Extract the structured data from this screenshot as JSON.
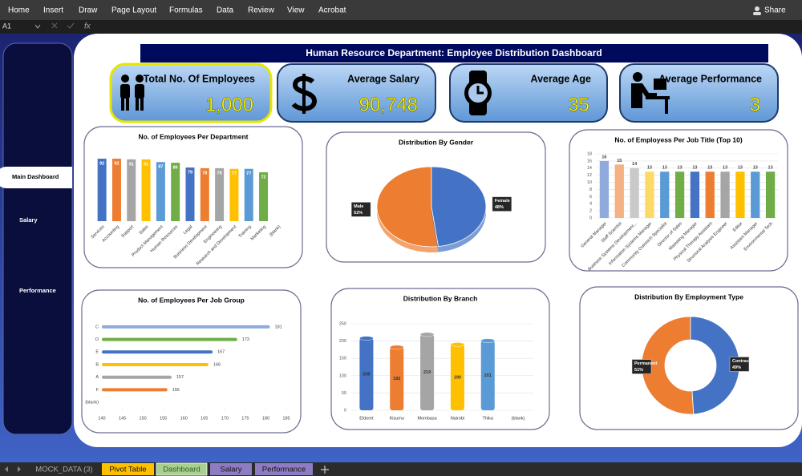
{
  "menu": {
    "items": [
      "Home",
      "Insert",
      "Draw",
      "Page Layout",
      "Formulas",
      "Data",
      "Review",
      "View",
      "Acrobat"
    ],
    "share": "Share"
  },
  "formula_bar": {
    "cell": "A1",
    "fx": "fx"
  },
  "sidebar": {
    "items": [
      "Main Dashboard",
      "Salary",
      "Performance"
    ]
  },
  "header": {
    "title": "Human Resource Department: Employee Distribution Dashboard"
  },
  "kpis": [
    {
      "label": "Total No. Of Employees",
      "value": "1,000"
    },
    {
      "label": "Average Salary",
      "value": "90,748"
    },
    {
      "label": "Average Age",
      "value": "35"
    },
    {
      "label": "Average Performance",
      "value": "3"
    }
  ],
  "chart_data": [
    {
      "type": "bar",
      "title": "No. of Employees Per Department",
      "categories": [
        "Services",
        "Accounting",
        "Support",
        "Sales",
        "Product Management",
        "Human Resources",
        "Legal",
        "Business Development",
        "Engineering",
        "Research and Development",
        "Training",
        "Marketing",
        "(blank)"
      ],
      "values": [
        92,
        92,
        91,
        91,
        87,
        86,
        79,
        78,
        78,
        77,
        77,
        72,
        null
      ],
      "colors": [
        "#4472c4",
        "#ed7d31",
        "#a5a5a5",
        "#ffc000",
        "#5b9bd5",
        "#70ad47",
        "#4472c4",
        "#ed7d31",
        "#a5a5a5",
        "#ffc000",
        "#5b9bd5",
        "#70ad47",
        "#4472c4"
      ]
    },
    {
      "type": "pie",
      "title": "Distribution By Gender",
      "categories": [
        "Male",
        "Female"
      ],
      "values": [
        52,
        48
      ],
      "value_labels": [
        "52%",
        "48%"
      ],
      "colors": [
        "#ed7d31",
        "#4472c4"
      ]
    },
    {
      "type": "bar",
      "title": "No. of Employess Per Job Title (Top 10)",
      "categories": [
        "General Manager",
        "Staff Scientist",
        "Business Systems Development...",
        "Information Systems Manager",
        "Community Outreach Specialist",
        "Director of Sales",
        "Marketing Manager",
        "Physical Therapy Assistant",
        "Structural Analysis Engineer",
        "Editor",
        "Assistant Manager",
        "Environmental Tech"
      ],
      "values": [
        16,
        15,
        14,
        13,
        13,
        13,
        13,
        13,
        13,
        13,
        13,
        13
      ],
      "colors": [
        "#8faadc",
        "#f4b183",
        "#c9c9c9",
        "#ffd966",
        "#5b9bd5",
        "#70ad47",
        "#4472c4",
        "#ed7d31",
        "#a5a5a5",
        "#ffc000",
        "#5b9bd5",
        "#70ad47"
      ],
      "ylim": [
        0,
        18
      ],
      "yticks": [
        0,
        2,
        4,
        6,
        8,
        10,
        12,
        14,
        16,
        18
      ],
      "grid": true
    },
    {
      "type": "hbar",
      "title": "No. of Employees Per Job Group",
      "categories": [
        "C",
        "D",
        "E",
        "B",
        "A",
        "F",
        "(blank)"
      ],
      "values": [
        181,
        173,
        167,
        166,
        157,
        156,
        null
      ],
      "colors": [
        "#8faadc",
        "#70ad47",
        "#4472c4",
        "#ffc000",
        "#a5a5a5",
        "#ed7d31",
        "#4472c4"
      ],
      "xlim": [
        140,
        185
      ],
      "xticks": [
        140,
        145,
        150,
        155,
        160,
        165,
        170,
        175,
        180,
        185
      ]
    },
    {
      "type": "bar",
      "title": "Distribution By Branch",
      "categories": [
        "Eldoret",
        "Kisumu",
        "Mombasa",
        "Nairobi",
        "Thika",
        "(blank)"
      ],
      "values": [
        208,
        182,
        219,
        190,
        201,
        null
      ],
      "colors": [
        "#4472c4",
        "#ed7d31",
        "#a5a5a5",
        "#ffc000",
        "#5b9bd5",
        "#70ad47"
      ],
      "ylim": [
        0,
        250
      ],
      "yticks": [
        0,
        50,
        100,
        150,
        200,
        250
      ],
      "grid": true
    },
    {
      "type": "doughnut",
      "title": "Distribution By Employment Type",
      "categories": [
        "Permanent",
        "Contract"
      ],
      "values": [
        51,
        49
      ],
      "value_labels": [
        "51%",
        "49%"
      ],
      "colors": [
        "#ed7d31",
        "#4472c4"
      ]
    }
  ],
  "sheet_tabs": [
    "MOCK_DATA (3)",
    "Pivot Table",
    "Dashboard",
    "Salary",
    "Performance"
  ]
}
